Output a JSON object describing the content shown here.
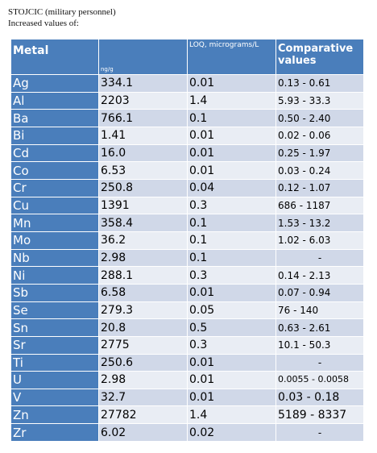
{
  "heading": {
    "line1": "STOJCIC (military personnel)",
    "line2": "Increased values of:"
  },
  "table": {
    "headers": {
      "metal": "Metal",
      "concentration_unit": "ng/g",
      "loq": "LOQ, micrograms/L",
      "comparative": "Comparative values"
    },
    "rows": [
      {
        "metal": "Ag",
        "value": "334.1",
        "loq": "0.01",
        "comparative": "0.13 - 0.61"
      },
      {
        "metal": "Al",
        "value": "2203",
        "loq": "1.4",
        "comparative": "5.93 - 33.3"
      },
      {
        "metal": "Ba",
        "value": "766.1",
        "loq": "0.1",
        "comparative": "0.50 - 2.40"
      },
      {
        "metal": "Bi",
        "value": "1.41",
        "loq": "0.01",
        "comparative": "0.02 - 0.06"
      },
      {
        "metal": "Cd",
        "value": "16.0",
        "loq": "0.01",
        "comparative": "0.25 - 1.97"
      },
      {
        "metal": "Co",
        "value": "6.53",
        "loq": "0.01",
        "comparative": "0.03 - 0.24"
      },
      {
        "metal": "Cr",
        "value": "250.8",
        "loq": "0.04",
        "comparative": "0.12 - 1.07"
      },
      {
        "metal": "Cu",
        "value": "1391",
        "loq": "0.3",
        "comparative": "686 - 1187"
      },
      {
        "metal": "Mn",
        "value": "358.4",
        "loq": "0.1",
        "comparative": "1.53 - 13.2"
      },
      {
        "metal": "Mo",
        "value": "36.2",
        "loq": "0.1",
        "comparative": "1.02 - 6.03"
      },
      {
        "metal": "Nb",
        "value": "2.98",
        "loq": "0.1",
        "comparative": "-"
      },
      {
        "metal": "Ni",
        "value": "288.1",
        "loq": "0.3",
        "comparative": "0.14 - 2.13"
      },
      {
        "metal": "Sb",
        "value": "6.58",
        "loq": "0.01",
        "comparative": "0.07 - 0.94"
      },
      {
        "metal": "Se",
        "value": "279.3",
        "loq": "0.05",
        "comparative": "76 - 140"
      },
      {
        "metal": "Sn",
        "value": "20.8",
        "loq": "0.5",
        "comparative": "0.63 - 2.61"
      },
      {
        "metal": "Sr",
        "value": "2775",
        "loq": "0.3",
        "comparative": "10.1 - 50.3"
      },
      {
        "metal": "Ti",
        "value": "250.6",
        "loq": "0.01",
        "comparative": "-"
      },
      {
        "metal": "U",
        "value": "2.98",
        "loq": "0.01",
        "comparative": "0.0055 - 0.0058"
      },
      {
        "metal": "V",
        "value": "32.7",
        "loq": "0.01",
        "comparative": "0.03 - 0.18"
      },
      {
        "metal": "Zn",
        "value": "27782",
        "loq": "1.4",
        "comparative": "5189 - 8337"
      },
      {
        "metal": "Zr",
        "value": "6.02",
        "loq": "0.02",
        "comparative": "-"
      }
    ]
  },
  "colors": {
    "header_blue": "#4a7ebb",
    "row_light": "#e9edf4",
    "row_dark": "#d0d8e8"
  }
}
